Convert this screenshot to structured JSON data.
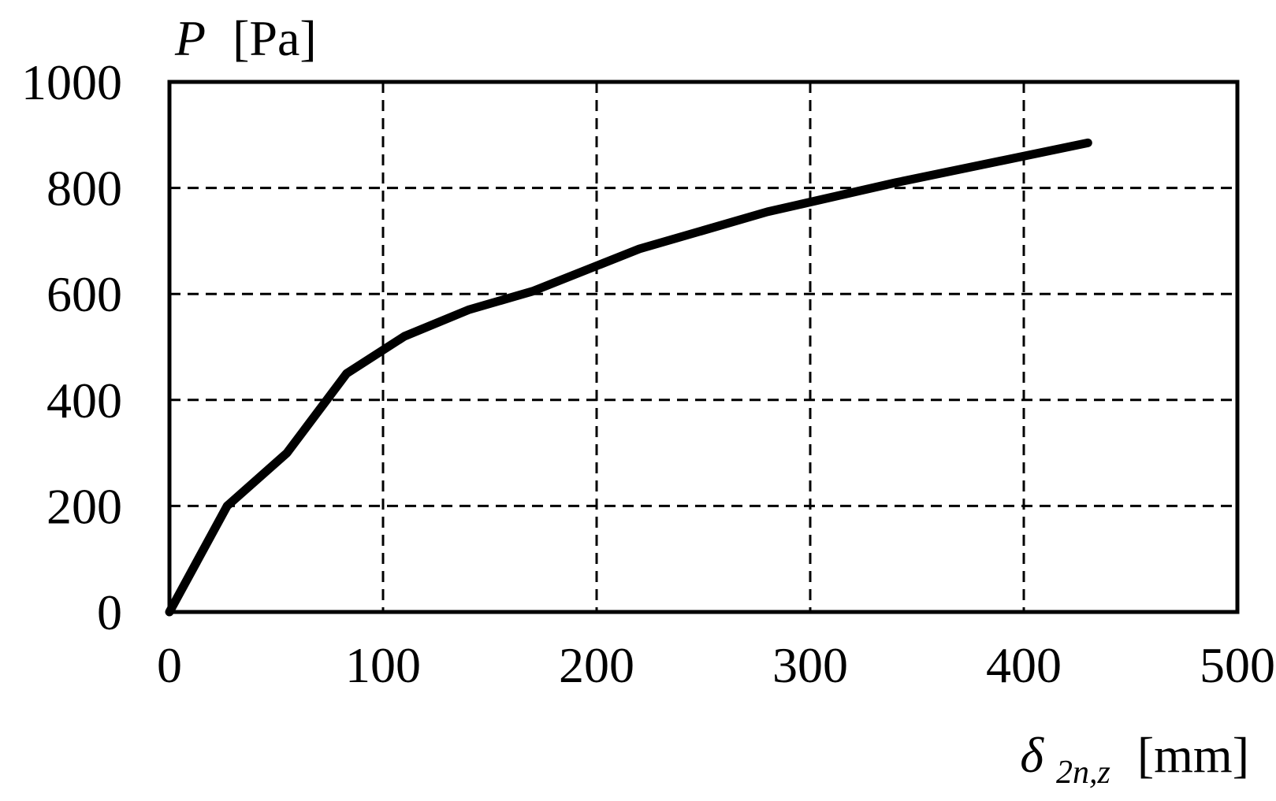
{
  "chart_data": {
    "type": "line",
    "title": "",
    "ylabel": {
      "symbol": "P",
      "unit": "[Pa]"
    },
    "xlabel": {
      "symbol": "δ",
      "subscript": "2n,z",
      "unit": "[mm]"
    },
    "xlim": [
      0,
      500
    ],
    "ylim": [
      0,
      1000
    ],
    "xticks": [
      0,
      100,
      200,
      300,
      400,
      500
    ],
    "yticks": [
      0,
      200,
      400,
      600,
      800,
      1000
    ],
    "xtick_labels": [
      "0",
      "100",
      "200",
      "300",
      "400",
      "500"
    ],
    "ytick_labels": [
      "0",
      "200",
      "400",
      "600",
      "800",
      "1000"
    ],
    "grid": true,
    "grid_style": "dashed",
    "series": [
      {
        "x": [
          0,
          27,
          55,
          83,
          110,
          140,
          170,
          220,
          280,
          340,
          430
        ],
        "y": [
          0,
          200,
          300,
          450,
          520,
          570,
          605,
          685,
          755,
          810,
          885
        ]
      }
    ]
  }
}
